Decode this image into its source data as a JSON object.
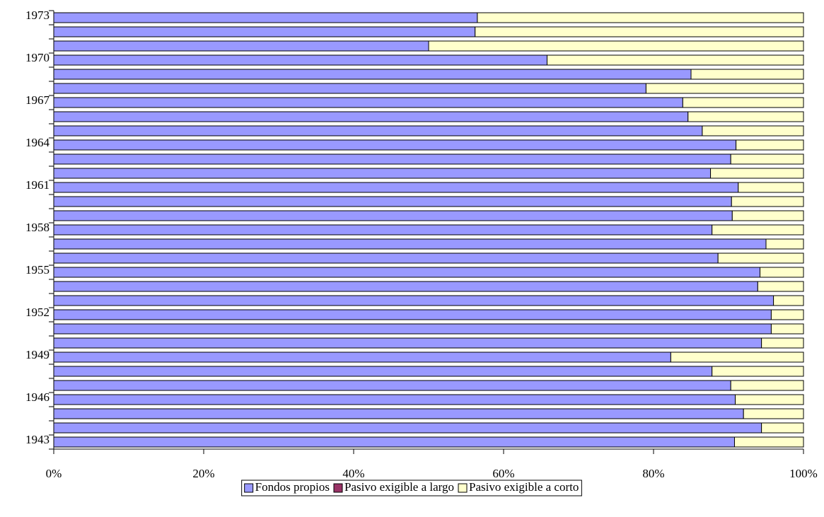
{
  "chart_data": {
    "type": "bar",
    "orientation": "horizontal",
    "stacked": true,
    "categories": [
      "1943",
      null,
      null,
      "1946",
      null,
      null,
      "1949",
      null,
      null,
      "1952",
      null,
      null,
      "1955",
      null,
      null,
      "1958",
      null,
      null,
      "1961",
      null,
      null,
      "1964",
      null,
      null,
      "1967",
      null,
      null,
      "1970",
      null,
      null,
      "1973"
    ],
    "series": [
      {
        "name": "Fondos propios",
        "color": "#9999ff",
        "values": [
          90.8,
          94.4,
          92.0,
          90.9,
          90.3,
          87.8,
          82.3,
          94.4,
          95.7,
          95.7,
          96.0,
          93.9,
          94.2,
          88.6,
          95.0,
          87.8,
          90.5,
          90.4,
          91.3,
          87.6,
          90.3,
          91.0,
          86.5,
          84.6,
          83.9,
          79.0,
          85.0,
          65.8,
          50.0,
          56.2,
          56.5
        ]
      },
      {
        "name": "Pasivo exigible a largo",
        "color": "#993366",
        "values": [
          0,
          0,
          0,
          0,
          0,
          0,
          0,
          0,
          0,
          0,
          0,
          0,
          0,
          0,
          0,
          0,
          0,
          0,
          0,
          0,
          0,
          0,
          0,
          0,
          0,
          0,
          0,
          0,
          0,
          0,
          0
        ]
      },
      {
        "name": "Pasivo exigible a corto",
        "color": "#ffffcc",
        "values": [
          9.2,
          5.6,
          8.0,
          9.1,
          9.7,
          12.2,
          17.7,
          5.6,
          4.3,
          4.3,
          4.0,
          6.1,
          5.8,
          11.4,
          5.0,
          12.2,
          9.5,
          9.6,
          8.7,
          12.4,
          9.7,
          9.0,
          13.5,
          15.4,
          16.1,
          21.0,
          15.0,
          34.2,
          50.0,
          43.8,
          43.5
        ]
      }
    ],
    "xlim": [
      0,
      100
    ],
    "xticks": [
      {
        "value": 0,
        "label": "0%"
      },
      {
        "value": 20,
        "label": "20%"
      },
      {
        "value": 40,
        "label": "40%"
      },
      {
        "value": 60,
        "label": "60%"
      },
      {
        "value": 80,
        "label": "80%"
      },
      {
        "value": 100,
        "label": "100%"
      }
    ],
    "legend": "bottom"
  }
}
